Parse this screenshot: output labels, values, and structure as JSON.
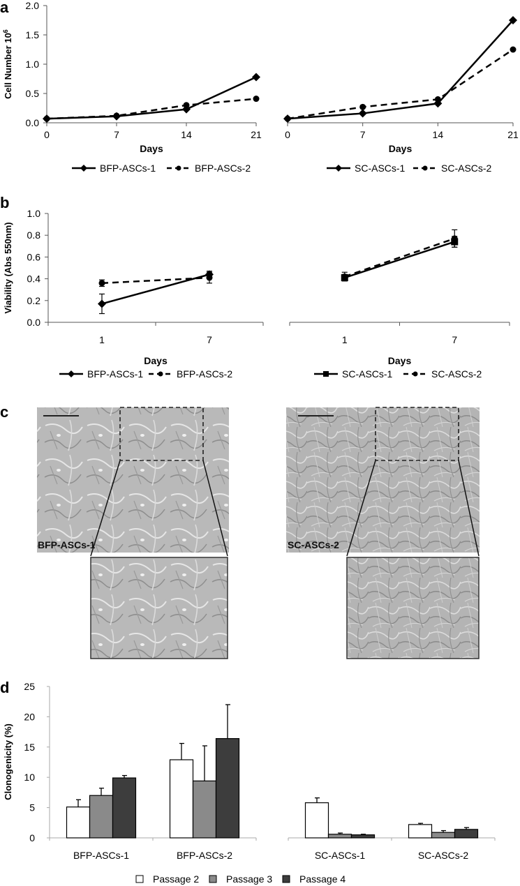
{
  "figure": {
    "panels": [
      "a",
      "b",
      "c",
      "d"
    ]
  },
  "chart_data": [
    {
      "panel": "a",
      "type": "line",
      "title": "",
      "xlabel": "Days",
      "ylabel": "Cell Number 10^6",
      "ylabel_base": "Cell Number 10",
      "ylabel_exp": "6",
      "ylim": [
        0,
        2.0
      ],
      "yticks": [
        "0.0",
        "0.5",
        "1.0",
        "1.5",
        "2.0"
      ],
      "x": [
        0,
        7,
        14,
        21
      ],
      "xticks": [
        "0",
        "7",
        "14",
        "21"
      ],
      "subplots": [
        {
          "name": "BFP",
          "series": [
            {
              "name": "BFP-ASCs-1",
              "marker": "diamond",
              "line": "solid",
              "values": [
                0.07,
                0.11,
                0.23,
                0.78
              ]
            },
            {
              "name": "BFP-ASCs-2",
              "marker": "circle",
              "line": "dashed",
              "values": [
                0.07,
                0.12,
                0.3,
                0.41
              ]
            }
          ]
        },
        {
          "name": "SC",
          "series": [
            {
              "name": "SC-ASCs-1",
              "marker": "diamond",
              "line": "solid",
              "values": [
                0.07,
                0.16,
                0.33,
                1.75
              ]
            },
            {
              "name": "SC-ASCs-2",
              "marker": "circle",
              "line": "dashed",
              "values": [
                0.07,
                0.27,
                0.4,
                1.25
              ]
            }
          ]
        }
      ],
      "grid": false,
      "legend_position": "bottom"
    },
    {
      "panel": "b",
      "type": "line",
      "title": "",
      "xlabel": "Days",
      "ylabel": "Viability (Abs 550nm)",
      "ylim": [
        0,
        1.0
      ],
      "yticks": [
        "0.0",
        "0.2",
        "0.4",
        "0.6",
        "0.8",
        "1.0"
      ],
      "categories": [
        "1",
        "7"
      ],
      "subplots": [
        {
          "name": "BFP",
          "series": [
            {
              "name": "BFP-ASCs-1",
              "marker": "diamond",
              "line": "solid",
              "values": [
                0.17,
                0.44
              ],
              "errors": [
                0.09,
                0.03
              ]
            },
            {
              "name": "BFP-ASCs-2",
              "marker": "circle",
              "line": "dashed",
              "values": [
                0.36,
                0.41
              ],
              "errors": [
                0.03,
                0.05
              ]
            }
          ]
        },
        {
          "name": "SC",
          "series": [
            {
              "name": "SC-ASCs-1",
              "marker": "square",
              "line": "solid",
              "values": [
                0.41,
                0.74
              ],
              "errors": [
                0.03,
                0.05
              ]
            },
            {
              "name": "SC-ASCs-2",
              "marker": "circle",
              "line": "dashed",
              "values": [
                0.42,
                0.77
              ],
              "errors": [
                0.04,
                0.08
              ]
            }
          ]
        }
      ],
      "grid": false,
      "legend_position": "bottom"
    },
    {
      "panel": "d",
      "type": "bar",
      "title": "",
      "xlabel": "",
      "ylabel": "Clonogenicity (%)",
      "ylim": [
        0,
        25
      ],
      "yticks": [
        "0",
        "5",
        "10",
        "15",
        "20",
        "25"
      ],
      "categories": [
        "BFP-ASCs-1",
        "BFP-ASCs-2",
        "SC-ASCs-1",
        "SC-ASCs-2"
      ],
      "series": [
        {
          "name": "Passage 2",
          "color": "#ffffff",
          "values": [
            5.1,
            12.9,
            5.8,
            2.2
          ],
          "errors": [
            1.2,
            2.7,
            0.8,
            0.2
          ]
        },
        {
          "name": "Passage 3",
          "color": "#8a8a8a",
          "values": [
            7.0,
            9.4,
            0.6,
            0.9
          ],
          "errors": [
            1.2,
            5.8,
            0.2,
            0.3
          ]
        },
        {
          "name": "Passage 4",
          "color": "#3d3d3d",
          "values": [
            9.9,
            16.4,
            0.5,
            1.4
          ],
          "errors": [
            0.4,
            5.6,
            0.1,
            0.3
          ]
        }
      ],
      "grid": false,
      "legend_position": "bottom"
    }
  ],
  "panel_c": {
    "images": [
      {
        "label": "BFP-ASCs-1",
        "has_scale_bar": true,
        "has_inset": true
      },
      {
        "label": "SC-ASCs-2",
        "has_scale_bar": true,
        "has_inset": true
      }
    ]
  }
}
